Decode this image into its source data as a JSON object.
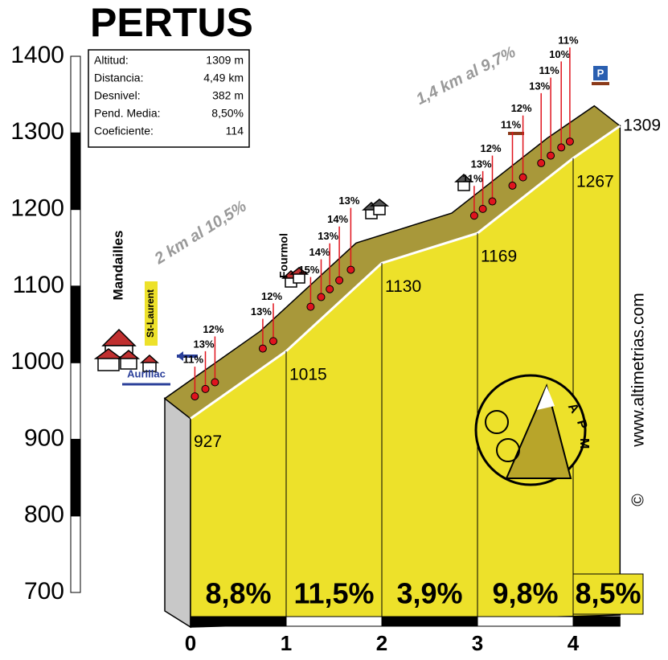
{
  "title": "PERTUS",
  "info": {
    "rows": [
      [
        "Altitud:",
        "1309 m"
      ],
      [
        "Distancia:",
        "4,49 km"
      ],
      [
        "Desnivel:",
        "382 m"
      ],
      [
        "Pend. Media:",
        "8,50%"
      ],
      [
        "Coeficiente:",
        "114"
      ]
    ]
  },
  "chart_data": {
    "type": "profile",
    "x": [
      0,
      1,
      2,
      3,
      4,
      4.49
    ],
    "values": [
      927,
      1015,
      1130,
      1169,
      1267,
      1309
    ],
    "xlim": [
      0,
      4.49
    ],
    "xticks": [
      0,
      1,
      2,
      3,
      4
    ],
    "ylim": [
      700,
      1400
    ],
    "yticks": [
      700,
      800,
      900,
      1000,
      1100,
      1200,
      1300,
      1400
    ],
    "color": "#ede12a",
    "segments": {
      "values": [
        8.8,
        11.5,
        3.9,
        9.8,
        8.5
      ],
      "value_labels": [
        "8,8%",
        "11,5%",
        "3,9%",
        "9,8%",
        "8,5%"
      ]
    },
    "gradient_markers": {
      "color": "#e0141e",
      "x": [
        0.18,
        0.29,
        0.39,
        0.89,
        1.0,
        1.39,
        1.5,
        1.59,
        1.69,
        1.81,
        3.1,
        3.19,
        3.29,
        3.5,
        3.61,
        3.8,
        3.9,
        4.01,
        4.1
      ],
      "values": [
        11,
        13,
        12,
        13,
        12,
        15,
        14,
        13,
        14,
        13,
        11,
        13,
        12,
        11,
        12,
        13,
        11,
        10,
        11
      ],
      "value_labels": [
        "11%",
        "13%",
        "12%",
        "13%",
        "12%",
        "15%",
        "14%",
        "13%",
        "14%",
        "13%",
        "11%",
        "13%",
        "12%",
        "11%",
        "12%",
        "13%",
        "11%",
        "10%",
        "11%"
      ]
    }
  },
  "annotations": [
    "2 km al 10,5%",
    "1,4 km al 9,7%"
  ],
  "places": {
    "mandailles": "Mandailles",
    "st_laurent": "St-Laurent",
    "aurillac": "Aurillac",
    "fourmol": "Fourmol",
    "parking": "P"
  },
  "watermark": "www.altimetrias.com",
  "copyright": "©",
  "logo_letters": [
    "A",
    "P",
    "M"
  ]
}
